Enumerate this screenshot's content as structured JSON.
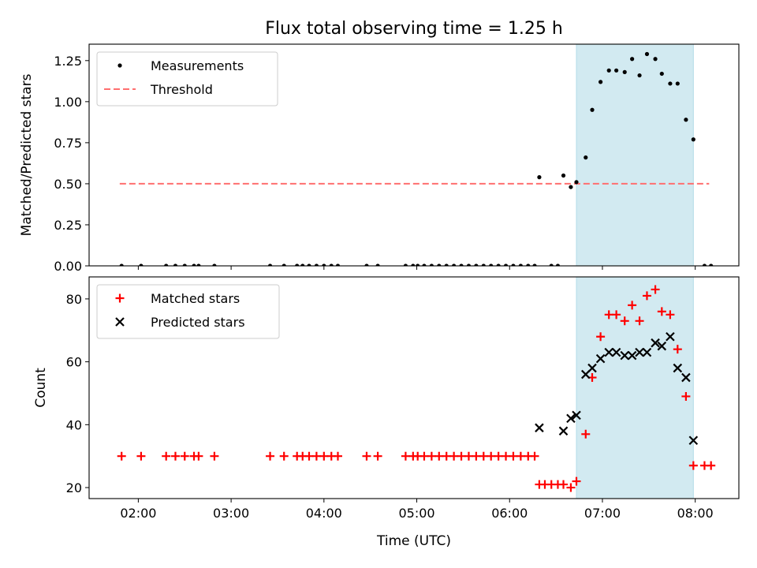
{
  "figure": {
    "title": "Flux total observing time = 1.25 h",
    "xlabel": "Time (UTC)",
    "xticks": [
      {
        "value": 2,
        "label": "02:00"
      },
      {
        "value": 3,
        "label": "03:00"
      },
      {
        "value": 4,
        "label": "04:00"
      },
      {
        "value": 5,
        "label": "05:00"
      },
      {
        "value": 6,
        "label": "06:00"
      },
      {
        "value": 7,
        "label": "07:00"
      },
      {
        "value": 8,
        "label": "08:00"
      }
    ],
    "xlim": [
      1.47,
      8.47
    ]
  },
  "chart_data": [
    {
      "type": "scatter",
      "ylabel": "Matched/Predicted stars",
      "ylim": [
        0,
        1.35
      ],
      "yticks": [
        {
          "value": 0,
          "label": "0.00"
        },
        {
          "value": 0.25,
          "label": "0.25"
        },
        {
          "value": 0.5,
          "label": "0.50"
        },
        {
          "value": 0.75,
          "label": "0.75"
        },
        {
          "value": 1.0,
          "label": "1.00"
        },
        {
          "value": 1.25,
          "label": "1.25"
        }
      ],
      "legend_position": "top-left",
      "highlight_span": {
        "x": [
          6.72,
          7.98
        ],
        "color": "#add8e6"
      },
      "threshold": {
        "name": "Threshold",
        "y": 0.5,
        "x": [
          1.8,
          8.15
        ],
        "color": "#ff6f6f"
      },
      "series": [
        {
          "name": "Measurements",
          "marker": "dot",
          "color": "#000000",
          "x": [
            1.82,
            2.03,
            2.3,
            2.4,
            2.5,
            2.6,
            2.65,
            2.82,
            3.42,
            3.57,
            3.71,
            3.77,
            3.84,
            3.92,
            4.0,
            4.08,
            4.15,
            4.46,
            4.58,
            4.88,
            4.96,
            5.01,
            5.08,
            5.16,
            5.24,
            5.32,
            5.4,
            5.48,
            5.56,
            5.64,
            5.72,
            5.8,
            5.88,
            5.96,
            6.04,
            6.12,
            6.2,
            6.27,
            6.32,
            6.45,
            6.52,
            6.58,
            6.66,
            6.72,
            6.82,
            6.89,
            6.98,
            7.07,
            7.15,
            7.24,
            7.32,
            7.4,
            7.48,
            7.57,
            7.64,
            7.73,
            7.81,
            7.9,
            7.98,
            8.1,
            8.17
          ],
          "y": [
            0,
            0,
            0,
            0,
            0,
            0,
            0,
            0,
            0,
            0,
            0,
            0,
            0,
            0,
            0,
            0,
            0,
            0,
            0,
            0,
            0,
            0,
            0,
            0,
            0,
            0,
            0,
            0,
            0,
            0,
            0,
            0,
            0,
            0,
            0,
            0,
            0,
            0,
            0.54,
            0,
            0,
            0.55,
            0.48,
            0.51,
            0.66,
            0.95,
            1.12,
            1.19,
            1.19,
            1.18,
            1.26,
            1.16,
            1.29,
            1.26,
            1.17,
            1.11,
            1.11,
            0.89,
            0.77,
            0,
            0
          ]
        }
      ]
    },
    {
      "type": "scatter",
      "ylabel": "Count",
      "ylim": [
        16.5,
        87
      ],
      "yticks": [
        {
          "value": 20,
          "label": "20"
        },
        {
          "value": 40,
          "label": "40"
        },
        {
          "value": 60,
          "label": "60"
        },
        {
          "value": 80,
          "label": "80"
        }
      ],
      "legend_position": "top-left",
      "highlight_span": {
        "x": [
          6.72,
          7.98
        ],
        "color": "#add8e6"
      },
      "series": [
        {
          "name": "Matched stars",
          "marker": "plus",
          "color": "#ff0000",
          "x": [
            1.82,
            2.03,
            2.3,
            2.4,
            2.5,
            2.6,
            2.65,
            2.82,
            3.42,
            3.57,
            3.71,
            3.77,
            3.84,
            3.92,
            4.0,
            4.08,
            4.15,
            4.46,
            4.58,
            4.88,
            4.96,
            5.01,
            5.08,
            5.16,
            5.24,
            5.32,
            5.4,
            5.48,
            5.56,
            5.64,
            5.72,
            5.8,
            5.88,
            5.96,
            6.04,
            6.12,
            6.2,
            6.27,
            6.32,
            6.38,
            6.45,
            6.52,
            6.58,
            6.66,
            6.72,
            6.82,
            6.89,
            6.98,
            7.07,
            7.15,
            7.24,
            7.32,
            7.4,
            7.48,
            7.57,
            7.64,
            7.73,
            7.81,
            7.9,
            7.98,
            8.1,
            8.17
          ],
          "y": [
            30,
            30,
            30,
            30,
            30,
            30,
            30,
            30,
            30,
            30,
            30,
            30,
            30,
            30,
            30,
            30,
            30,
            30,
            30,
            30,
            30,
            30,
            30,
            30,
            30,
            30,
            30,
            30,
            30,
            30,
            30,
            30,
            30,
            30,
            30,
            30,
            30,
            30,
            21,
            21,
            21,
            21,
            21,
            20,
            22,
            37,
            55,
            68,
            75,
            75,
            73,
            78,
            73,
            81,
            83,
            76,
            75,
            64,
            49,
            27,
            27,
            27
          ]
        },
        {
          "name": "Predicted stars",
          "marker": "x",
          "color": "#000000",
          "x": [
            6.32,
            6.58,
            6.66,
            6.72,
            6.82,
            6.89,
            6.98,
            7.07,
            7.15,
            7.24,
            7.32,
            7.4,
            7.48,
            7.57,
            7.64,
            7.73,
            7.81,
            7.9,
            7.98
          ],
          "y": [
            39,
            38,
            42,
            43,
            56,
            58,
            61,
            63,
            63,
            62,
            62,
            63,
            63,
            66,
            65,
            68,
            58,
            55,
            35
          ]
        }
      ]
    }
  ]
}
